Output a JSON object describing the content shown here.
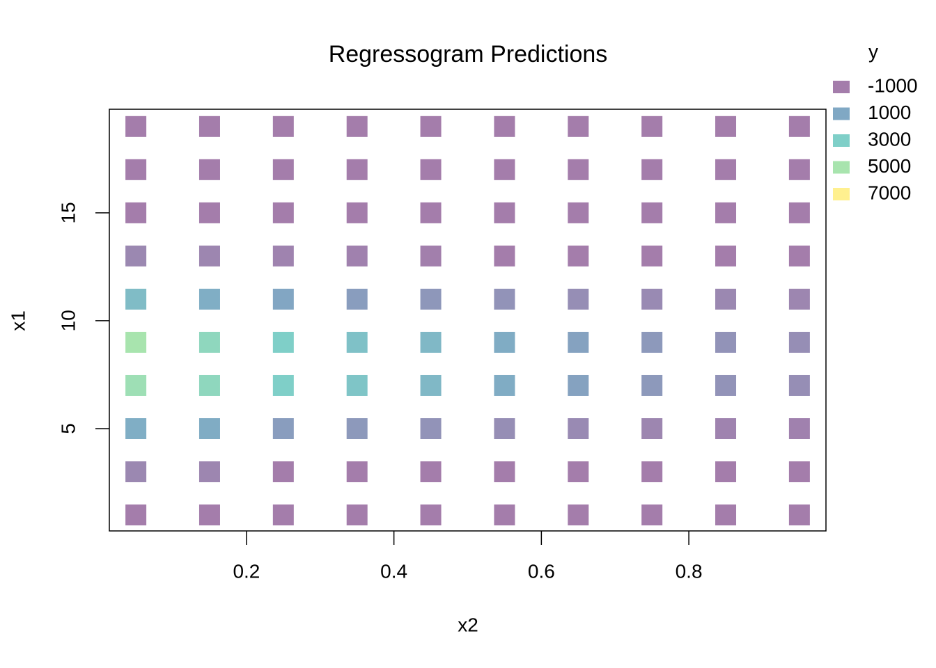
{
  "chart_data": {
    "type": "heatmap",
    "title": "Regressogram Predictions",
    "x_label": "x2",
    "y_label": "x1",
    "x": [
      0.05,
      0.15,
      0.25,
      0.35,
      0.45,
      0.55,
      0.65,
      0.75,
      0.85,
      0.95
    ],
    "y": [
      1,
      3,
      5,
      7,
      9,
      11,
      13,
      15,
      17,
      19
    ],
    "z": [
      [
        -1000,
        -1000,
        -1000,
        -1000,
        -1000,
        -1000,
        -1000,
        -1000,
        -1000,
        -1000
      ],
      [
        -500,
        -600,
        -1000,
        -1000,
        -1000,
        -1000,
        -1000,
        -1000,
        -1000,
        -1000
      ],
      [
        1300,
        1200,
        500,
        300,
        0,
        -200,
        -400,
        -600,
        -700,
        -800
      ],
      [
        4500,
        3800,
        3000,
        2500,
        1800,
        1200,
        700,
        300,
        0,
        -200
      ],
      [
        5000,
        3800,
        3000,
        2300,
        1800,
        1200,
        700,
        300,
        0,
        -200
      ],
      [
        2000,
        1300,
        900,
        500,
        200,
        0,
        -200,
        -400,
        -500,
        -600
      ],
      [
        -500,
        -600,
        -700,
        -800,
        -900,
        -1000,
        -1000,
        -1000,
        -1000,
        -1000
      ],
      [
        -1000,
        -1000,
        -1000,
        -1000,
        -1000,
        -1000,
        -1000,
        -1000,
        -1000,
        -1000
      ],
      [
        -1000,
        -1000,
        -1000,
        -1000,
        -1000,
        -1000,
        -1000,
        -1000,
        -1000,
        -1000
      ],
      [
        -1000,
        -1000,
        -1000,
        -1000,
        -1000,
        -1000,
        -1000,
        -1000,
        -1000,
        -1000
      ]
    ],
    "xlim": [
      0.014,
      0.986
    ],
    "ylim": [
      0.26,
      19.8
    ],
    "xticks": [
      0.2,
      0.4,
      0.6,
      0.8
    ],
    "yticks": [
      5,
      10,
      15
    ],
    "legend": {
      "title": "y",
      "position": "right",
      "values": [
        -1000,
        1000,
        3000,
        5000,
        7000
      ],
      "colors": [
        "#a47dab",
        "#80a8c4",
        "#7fcfc8",
        "#a8e4ae",
        "#fff08f"
      ]
    }
  }
}
